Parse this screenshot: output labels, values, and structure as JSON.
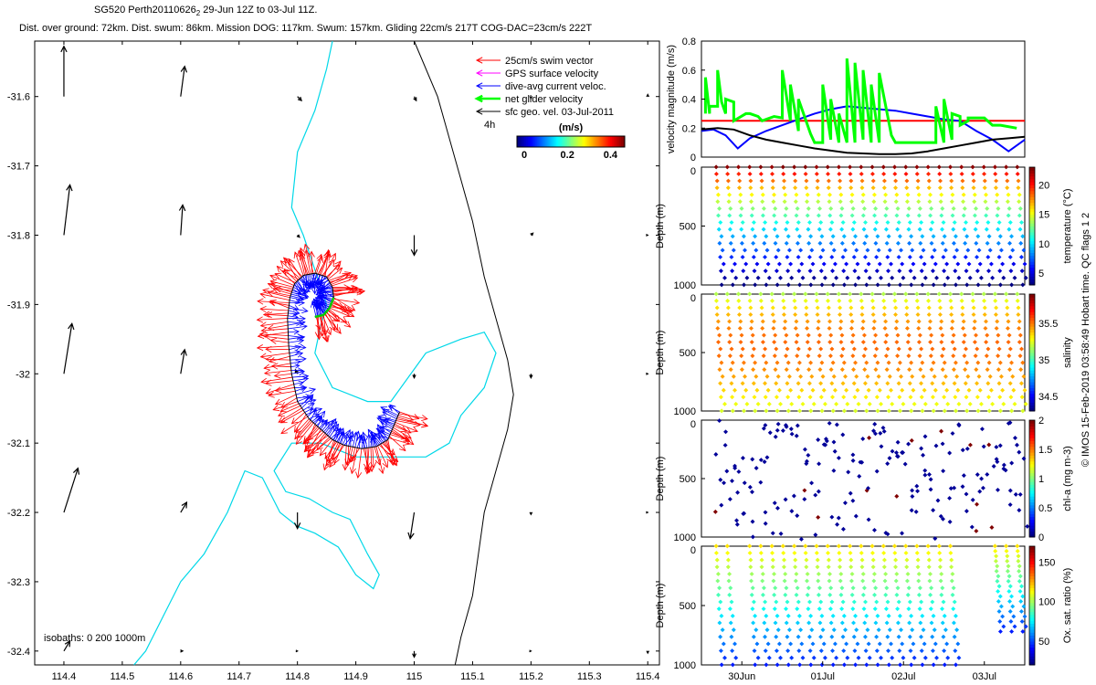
{
  "header": {
    "line1": "SG520 Perth20110626",
    "line1_sub": "2",
    "line1_rest": " 29-Jun 12Z to 03-Jul 11Z.",
    "line2": "Dist. over ground: 72km. Dist. swum: 86km. Mission DOG: 117km. Swum: 157km. Gliding 22cm/s 217T COG-DAC=23cm/s 222T"
  },
  "side_text": "© IMOS 15-Feb-2019 03:58:49 Hobart time. QC flags 1  2",
  "chart_data": [
    {
      "type": "map",
      "xlim": [
        114.35,
        115.42
      ],
      "ylim": [
        -32.42,
        -31.52
      ],
      "x_ticks": [
        114.4,
        114.5,
        114.6,
        114.7,
        114.8,
        114.9,
        115,
        115.1,
        115.2,
        115.3,
        115.4
      ],
      "x_tick_labels": [
        "114.4",
        "114.5",
        "114.6",
        "114.7",
        "114.8",
        "114.9",
        "115",
        "115.1",
        "115.2",
        "115.3",
        "115.4"
      ],
      "y_ticks": [
        -31.6,
        -31.7,
        -31.8,
        -31.9,
        -32,
        -32.1,
        -32.2,
        -32.3,
        -32.4
      ],
      "y_tick_labels": [
        "-31.6",
        "-31.7",
        "-31.8",
        "-31.9",
        "-32",
        "-32.1",
        "-32.2",
        "-32.3",
        "-32.4"
      ],
      "legend": {
        "placement": "top-right",
        "entries": [
          {
            "label": "25cm/s swim vector",
            "color": "#ff0000"
          },
          {
            "label": "GPS surface velocity",
            "color": "#ff00ff"
          },
          {
            "label": "dive-avg current veloc.",
            "color": "#0000ff"
          },
          {
            "label": "net glider velocity",
            "color": "#00ff00"
          },
          {
            "label": "sfc geo. vel. 03-Jul-2011",
            "color": "#000000"
          }
        ],
        "note": "4h"
      },
      "colorbar": {
        "title": "(m/s)",
        "ticks": [
          0,
          0.2,
          0.4
        ],
        "tick_labels": [
          "0",
          "0.2",
          "0.4"
        ],
        "range": [
          0,
          0.5
        ]
      },
      "isobaths_label": "isobaths: 0   200   1000m",
      "isobath_200": [
        [
          114.86,
          -31.52
        ],
        [
          114.85,
          -31.56
        ],
        [
          114.83,
          -31.62
        ],
        [
          114.8,
          -31.68
        ],
        [
          114.79,
          -31.76
        ],
        [
          114.81,
          -31.8
        ],
        [
          114.83,
          -31.85
        ],
        [
          114.85,
          -31.9
        ],
        [
          114.84,
          -31.93
        ],
        [
          114.83,
          -31.97
        ],
        [
          114.86,
          -32.02
        ],
        [
          114.92,
          -32.04
        ],
        [
          114.96,
          -32.04
        ],
        [
          115.02,
          -31.97
        ],
        [
          115.08,
          -31.95
        ],
        [
          115.12,
          -31.94
        ],
        [
          115.14,
          -31.97
        ],
        [
          115.12,
          -32.02
        ],
        [
          115.08,
          -32.06
        ],
        [
          115.06,
          -32.1
        ],
        [
          115.02,
          -32.12
        ],
        [
          114.96,
          -32.12
        ],
        [
          114.9,
          -32.12
        ],
        [
          114.84,
          -32.1
        ],
        [
          114.79,
          -32.1
        ],
        [
          114.76,
          -32.14
        ],
        [
          114.78,
          -32.17
        ],
        [
          114.82,
          -32.18
        ],
        [
          114.86,
          -32.2
        ],
        [
          114.89,
          -32.21
        ],
        [
          114.92,
          -32.26
        ],
        [
          114.94,
          -32.29
        ],
        [
          114.93,
          -32.31
        ],
        [
          114.9,
          -32.29
        ],
        [
          114.87,
          -32.25
        ],
        [
          114.83,
          -32.23
        ],
        [
          114.8,
          -32.22
        ],
        [
          114.77,
          -32.2
        ],
        [
          114.74,
          -32.15
        ],
        [
          114.71,
          -32.14
        ],
        [
          114.68,
          -32.2
        ],
        [
          114.64,
          -32.26
        ],
        [
          114.6,
          -32.3
        ],
        [
          114.57,
          -32.35
        ],
        [
          114.54,
          -32.4
        ],
        [
          114.52,
          -32.42
        ]
      ],
      "isobath_1000": [
        [
          115.0,
          -31.52
        ],
        [
          115.04,
          -31.6
        ],
        [
          115.06,
          -31.66
        ],
        [
          115.08,
          -31.72
        ],
        [
          115.1,
          -31.78
        ],
        [
          115.12,
          -31.86
        ],
        [
          115.14,
          -31.92
        ],
        [
          115.16,
          -31.98
        ],
        [
          115.17,
          -32.03
        ],
        [
          115.16,
          -32.08
        ],
        [
          115.14,
          -32.14
        ],
        [
          115.12,
          -32.2
        ],
        [
          115.11,
          -32.26
        ],
        [
          115.1,
          -32.32
        ],
        [
          115.08,
          -32.38
        ],
        [
          115.07,
          -32.42
        ]
      ],
      "track": [
        [
          114.975,
          -32.055
        ],
        [
          114.965,
          -32.075
        ],
        [
          114.955,
          -32.095
        ],
        [
          114.935,
          -32.105
        ],
        [
          114.91,
          -32.108
        ],
        [
          114.88,
          -32.103
        ],
        [
          114.86,
          -32.095
        ],
        [
          114.84,
          -32.08
        ],
        [
          114.82,
          -32.065
        ],
        [
          114.8,
          -32.04
        ],
        [
          114.79,
          -32.0
        ],
        [
          114.785,
          -31.96
        ],
        [
          114.783,
          -31.92
        ],
        [
          114.787,
          -31.89
        ],
        [
          114.795,
          -31.87
        ],
        [
          114.81,
          -31.858
        ],
        [
          114.83,
          -31.855
        ],
        [
          114.85,
          -31.86
        ],
        [
          114.86,
          -31.875
        ],
        [
          114.862,
          -31.89
        ],
        [
          114.855,
          -31.905
        ],
        [
          114.845,
          -31.915
        ],
        [
          114.83,
          -31.918
        ]
      ],
      "geo_vectors": [
        {
          "x": 114.4,
          "y": -31.6,
          "u": 0.0,
          "v": 0.25
        },
        {
          "x": 114.6,
          "y": -31.6,
          "u": 0.02,
          "v": 0.15
        },
        {
          "x": 114.8,
          "y": -31.6,
          "u": 0.02,
          "v": -0.02
        },
        {
          "x": 115.0,
          "y": -31.6,
          "u": 0.01,
          "v": -0.02
        },
        {
          "x": 115.2,
          "y": -31.6,
          "u": 0.0,
          "v": -0.01
        },
        {
          "x": 115.4,
          "y": -31.6,
          "u": 0.0,
          "v": 0.01
        },
        {
          "x": 114.4,
          "y": -31.8,
          "u": 0.03,
          "v": 0.25
        },
        {
          "x": 114.6,
          "y": -31.8,
          "u": 0.01,
          "v": 0.15
        },
        {
          "x": 114.8,
          "y": -31.8,
          "u": 0.01,
          "v": -0.01
        },
        {
          "x": 115.0,
          "y": -31.8,
          "u": 0.0,
          "v": -0.1
        },
        {
          "x": 115.2,
          "y": -31.8,
          "u": 0.01,
          "v": 0.01
        },
        {
          "x": 115.4,
          "y": -31.8,
          "u": 0.0,
          "v": 0.0
        },
        {
          "x": 114.4,
          "y": -32.0,
          "u": 0.04,
          "v": 0.25
        },
        {
          "x": 114.6,
          "y": -32.0,
          "u": 0.02,
          "v": 0.12
        },
        {
          "x": 114.8,
          "y": -32.0,
          "u": -0.01,
          "v": 0.02
        },
        {
          "x": 115.0,
          "y": -32.0,
          "u": 0.0,
          "v": -0.02
        },
        {
          "x": 115.2,
          "y": -32.0,
          "u": 0.0,
          "v": -0.02
        },
        {
          "x": 115.4,
          "y": -32.0,
          "u": 0.0,
          "v": 0.0
        },
        {
          "x": 114.4,
          "y": -32.2,
          "u": 0.07,
          "v": 0.22
        },
        {
          "x": 114.6,
          "y": -32.2,
          "u": 0.03,
          "v": 0.05
        },
        {
          "x": 114.8,
          "y": -32.2,
          "u": 0.0,
          "v": -0.08
        },
        {
          "x": 115.0,
          "y": -32.2,
          "u": -0.02,
          "v": -0.13
        },
        {
          "x": 115.2,
          "y": -32.2,
          "u": 0.0,
          "v": -0.01
        },
        {
          "x": 115.4,
          "y": -32.2,
          "u": 0.0,
          "v": 0.0
        },
        {
          "x": 114.4,
          "y": -32.4,
          "u": 0.03,
          "v": 0.05
        },
        {
          "x": 114.6,
          "y": -32.4,
          "u": 0.01,
          "v": 0.0
        },
        {
          "x": 114.8,
          "y": -32.4,
          "u": 0.0,
          "v": 0.0
        },
        {
          "x": 115.0,
          "y": -32.4,
          "u": 0.0,
          "v": -0.03
        },
        {
          "x": 115.2,
          "y": -32.4,
          "u": 0.0,
          "v": 0.0
        },
        {
          "x": 115.4,
          "y": -32.4,
          "u": 0.0,
          "v": -0.01
        }
      ]
    },
    {
      "type": "line",
      "ylabel": "velocity magnitude (m/s)",
      "ylim": [
        0,
        0.8
      ],
      "y_ticks": [
        0,
        0.2,
        0.4,
        0.6,
        0.8
      ],
      "y_tick_labels": [
        "0",
        "0.2",
        "0.4",
        "0.6",
        "0.8"
      ],
      "xlim": [
        0,
        4.0
      ],
      "series": [
        {
          "color": "#ff0000",
          "x": [
            0,
            4.0
          ],
          "y": [
            0.25,
            0.25
          ]
        },
        {
          "color": "#0000ff",
          "x": [
            0,
            0.15,
            0.3,
            0.45,
            0.6,
            0.8,
            1.0,
            1.2,
            1.4,
            1.6,
            1.8,
            2.0,
            2.2,
            2.4,
            2.6,
            2.8,
            3.0,
            3.2,
            3.4,
            3.6,
            3.8,
            4.0
          ],
          "y": [
            0.18,
            0.19,
            0.15,
            0.06,
            0.13,
            0.18,
            0.22,
            0.26,
            0.3,
            0.33,
            0.35,
            0.34,
            0.33,
            0.32,
            0.3,
            0.28,
            0.26,
            0.25,
            0.18,
            0.12,
            0.04,
            0.12
          ]
        },
        {
          "color": "#000000",
          "x": [
            0,
            0.2,
            0.4,
            0.6,
            0.8,
            1.0,
            1.2,
            1.4,
            1.6,
            1.8,
            2.0,
            2.2,
            2.4,
            2.6,
            2.8,
            3.0,
            3.2,
            3.4,
            3.6,
            3.8,
            4.0
          ],
          "y": [
            0.19,
            0.2,
            0.19,
            0.15,
            0.12,
            0.1,
            0.08,
            0.06,
            0.045,
            0.03,
            0.025,
            0.02,
            0.02,
            0.025,
            0.04,
            0.06,
            0.08,
            0.1,
            0.12,
            0.13,
            0.14
          ]
        },
        {
          "color": "#00ff00",
          "x": [
            0.05,
            0.05,
            0.1,
            0.1,
            0.2,
            0.2,
            0.25,
            0.3,
            0.3,
            0.4,
            0.4,
            0.55,
            0.6,
            0.7,
            0.75,
            0.9,
            1.0,
            1.0,
            1.1,
            1.1,
            1.2,
            1.2,
            1.35,
            1.4,
            1.5,
            1.5,
            1.6,
            1.6,
            1.7,
            1.7,
            1.8,
            1.8,
            1.9,
            1.9,
            2.0,
            2.0,
            2.1,
            2.1,
            2.2,
            2.2,
            2.35,
            2.4,
            2.6,
            2.7,
            2.8,
            2.9,
            2.9,
            3.0,
            3.0,
            3.1,
            3.1,
            3.2,
            3.2,
            3.3,
            3.3,
            3.4,
            3.5,
            3.6,
            3.7,
            3.9
          ],
          "y": [
            0.3,
            0.55,
            0.3,
            0.35,
            0.35,
            0.6,
            0.38,
            0.3,
            0.4,
            0.38,
            0.25,
            0.3,
            0.3,
            0.28,
            0.25,
            0.28,
            0.27,
            0.6,
            0.25,
            0.5,
            0.18,
            0.4,
            0.16,
            0.1,
            0.1,
            0.5,
            0.12,
            0.4,
            0.1,
            0.3,
            0.1,
            0.68,
            0.1,
            0.65,
            0.12,
            0.6,
            0.1,
            0.5,
            0.1,
            0.58,
            0.15,
            0.1,
            0.1,
            0.1,
            0.1,
            0.1,
            0.35,
            0.1,
            0.4,
            0.12,
            0.3,
            0.28,
            0.22,
            0.25,
            0.27,
            0.27,
            0.27,
            0.22,
            0.22,
            0.2
          ]
        }
      ]
    },
    {
      "type": "scatter",
      "ylabel": "Depth (m)",
      "cbar_label": "temperature (°C)",
      "ylim": [
        1000,
        0
      ],
      "y_ticks": [
        0,
        500,
        1000
      ],
      "y_tick_labels": [
        "0",
        "500",
        "1000"
      ],
      "cbar_ticks": [
        5,
        10,
        15,
        20
      ],
      "cbar_tick_labels": [
        "5",
        "10",
        "15",
        "20"
      ],
      "cbar_range": [
        3,
        23
      ],
      "profile_cycles": 28,
      "max_depth": 1000
    },
    {
      "type": "scatter",
      "ylabel": "Depth (m)",
      "cbar_label": "salinity",
      "ylim": [
        1000,
        0
      ],
      "y_ticks": [
        0,
        500,
        1000
      ],
      "y_tick_labels": [
        "0",
        "500",
        "1000"
      ],
      "cbar_ticks": [
        34.5,
        35,
        35.5
      ],
      "cbar_tick_labels": [
        "34.5",
        "35",
        "35.5"
      ],
      "cbar_range": [
        34.3,
        35.9
      ],
      "profile_cycles": 28,
      "max_depth": 1000
    },
    {
      "type": "scatter",
      "ylabel": "Depth (m)",
      "cbar_label": "chl-a (mg m-3)",
      "ylim": [
        1000,
        0
      ],
      "y_ticks": [
        0,
        500,
        1000
      ],
      "y_tick_labels": [
        "0",
        "500",
        "1000"
      ],
      "cbar_ticks": [
        0,
        0.5,
        1,
        1.5,
        2
      ],
      "cbar_tick_labels": [
        "0",
        "0.5",
        "1",
        "1.5",
        "2"
      ],
      "cbar_range": [
        0,
        2
      ],
      "profile_cycles": 28,
      "max_depth": 1000
    },
    {
      "type": "scatter",
      "ylabel": "Depth (m)",
      "cbar_label": "Ox. sat. ratio (%)",
      "ylim": [
        1000,
        0
      ],
      "y_ticks": [
        0,
        500,
        1000
      ],
      "y_tick_labels": [
        "0",
        "500",
        "1000"
      ],
      "cbar_ticks": [
        50,
        100,
        150
      ],
      "cbar_tick_labels": [
        "50",
        "100",
        "150"
      ],
      "cbar_range": [
        20,
        170
      ],
      "x_ticks": [
        0.5,
        1.5,
        2.5,
        3.5
      ],
      "x_tick_labels": [
        "30Jun",
        "01Jul",
        "02Jul",
        "03Jul"
      ],
      "profile_cycles": 28,
      "max_depth": 1000
    }
  ]
}
